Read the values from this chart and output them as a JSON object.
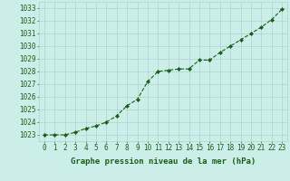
{
  "x": [
    0,
    1,
    2,
    3,
    4,
    5,
    6,
    7,
    8,
    9,
    10,
    11,
    12,
    13,
    14,
    15,
    16,
    17,
    18,
    19,
    20,
    21,
    22,
    23
  ],
  "y": [
    1023.0,
    1023.0,
    1023.0,
    1023.2,
    1023.5,
    1023.7,
    1024.0,
    1024.5,
    1025.3,
    1025.8,
    1027.2,
    1028.0,
    1028.1,
    1028.2,
    1028.2,
    1028.9,
    1028.9,
    1029.5,
    1030.0,
    1030.5,
    1031.0,
    1031.5,
    1032.1,
    1032.9
  ],
  "ylim": [
    1022.5,
    1033.5
  ],
  "yticks": [
    1023,
    1024,
    1025,
    1026,
    1027,
    1028,
    1029,
    1030,
    1031,
    1032,
    1033
  ],
  "xticks": [
    0,
    1,
    2,
    3,
    4,
    5,
    6,
    7,
    8,
    9,
    10,
    11,
    12,
    13,
    14,
    15,
    16,
    17,
    18,
    19,
    20,
    21,
    22,
    23
  ],
  "xlabel": "Graphe pression niveau de la mer (hPa)",
  "line_color": "#1a5e1a",
  "marker": "D",
  "marker_size": 2.0,
  "background_color": "#cceee8",
  "grid_color": "#aad4ce",
  "tick_color": "#1a5e1a",
  "label_color": "#1a5e1a",
  "xlabel_fontsize": 6.5,
  "tick_fontsize": 5.5
}
